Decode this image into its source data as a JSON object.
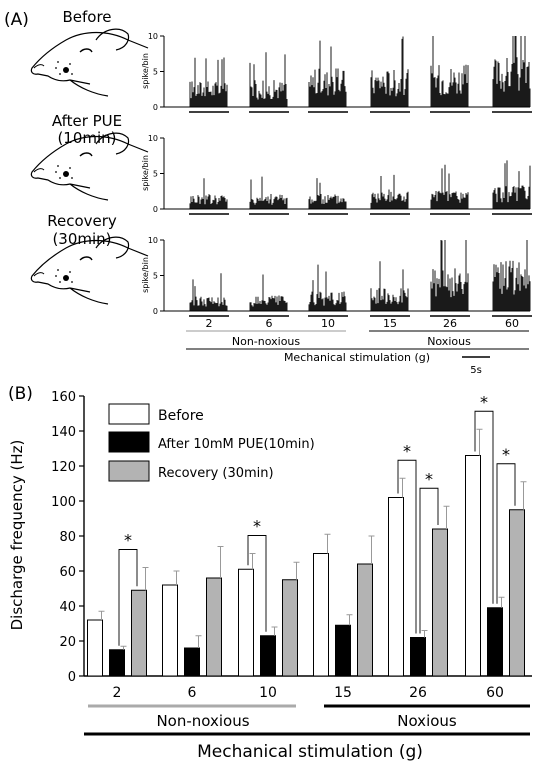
{
  "panel_a": {
    "label": "(A)",
    "conditions": [
      {
        "label": "Before"
      },
      {
        "label": "After PUE",
        "label2": "(10min)"
      },
      {
        "label": "Recovery",
        "label2": "(30min)"
      }
    ],
    "ylabel": "spike/bin",
    "yticks": [
      "10",
      "5",
      "0"
    ],
    "stim_labels": [
      "2",
      "6",
      "10",
      "15",
      "26",
      "60"
    ],
    "group_nonnoxious": "Non-noxious",
    "group_noxious": "Noxious",
    "xlabel": "Mechanical stimulation (g)",
    "scale_bar": "5s",
    "raster_levels": [
      [
        3.5,
        3.5,
        5,
        5,
        5.5,
        6.5
      ],
      [
        2,
        2,
        2,
        2.5,
        2.5,
        3
      ],
      [
        2,
        2,
        2.5,
        3,
        5.5,
        6.5
      ]
    ]
  },
  "panel_b": {
    "label": "(B)",
    "legend": [
      "Before",
      "After 10mM PUE(10min)",
      "Recovery (30min)"
    ],
    "significance_mark": "*",
    "group_nonnoxious": "Non-noxious",
    "group_noxious": "Noxious"
  },
  "chart_data": {
    "type": "bar",
    "categories": [
      "2",
      "6",
      "10",
      "15",
      "26",
      "60"
    ],
    "series": [
      {
        "name": "Before",
        "values": [
          32,
          52,
          61,
          70,
          102,
          126
        ],
        "errors": [
          5,
          8,
          9,
          11,
          11,
          15
        ],
        "color": "#ffffff"
      },
      {
        "name": "After 10mM PUE(10min)",
        "values": [
          15,
          16,
          23,
          29,
          22,
          39
        ],
        "errors": [
          2,
          7,
          5,
          6,
          4,
          6
        ],
        "color": "#000000"
      },
      {
        "name": "Recovery (30min)",
        "values": [
          49,
          56,
          55,
          64,
          84,
          95
        ],
        "errors": [
          13,
          18,
          10,
          16,
          13,
          16
        ],
        "color": "#b3b3b3"
      }
    ],
    "xlabel": "Mechanical stimulation (g)",
    "ylabel": "Discharge frequency (Hz)",
    "ylim": [
      0,
      160
    ],
    "yticks": [
      0,
      20,
      40,
      60,
      80,
      100,
      120,
      140,
      160
    ],
    "significance": [
      {
        "category": "2",
        "pairs": [
          [
            "After 10mM PUE(10min)",
            "Recovery (30min)"
          ]
        ]
      },
      {
        "category": "10",
        "pairs": [
          [
            "Before",
            "After 10mM PUE(10min)"
          ]
        ]
      },
      {
        "category": "26",
        "pairs": [
          [
            "Before",
            "After 10mM PUE(10min)"
          ],
          [
            "After 10mM PUE(10min)",
            "Recovery (30min)"
          ]
        ]
      },
      {
        "category": "60",
        "pairs": [
          [
            "Before",
            "After 10mM PUE(10min)"
          ],
          [
            "After 10mM PUE(10min)",
            "Recovery (30min)"
          ]
        ]
      }
    ]
  }
}
